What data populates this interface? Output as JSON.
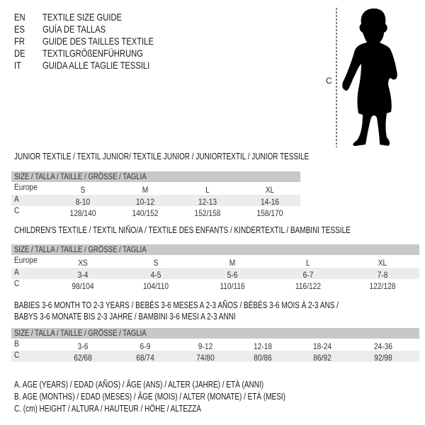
{
  "titles": [
    {
      "lang": "EN",
      "text": "TEXTILE SIZE GUIDE"
    },
    {
      "lang": "ES",
      "text": "GUÍA DE TALLAS"
    },
    {
      "lang": "FR",
      "text": "GUIDE DES TAILLES TEXTILE"
    },
    {
      "lang": "DE",
      "text": "TEXTILGRÖßENFÜHRUNG"
    },
    {
      "lang": "IT",
      "text": "GUIDA ALLE TAGLIE TESSILI"
    }
  ],
  "figure": {
    "measure_label": "C",
    "icon": "baby-silhouette"
  },
  "tables": [
    {
      "heading": [
        "JUNIOR TEXTILE / TEXTIL JUNIOR/ TEXTILE JUNIOR / JUNIORTEXTIL / JUNIOR TESSILE"
      ],
      "header": "SIZE / TALLA / TAILLE / GRÖSSE / TAGLIA",
      "rows": [
        {
          "label": "Europe",
          "values": [
            "S",
            "M",
            "L",
            "XL"
          ]
        },
        {
          "label": "A",
          "values": [
            "8-10",
            "10-12",
            "12-13",
            "14-16"
          ]
        },
        {
          "label": "C",
          "values": [
            "128/140",
            "140/152",
            "152/158",
            "158/170"
          ]
        }
      ]
    },
    {
      "heading": [
        "CHILDREN'S TEXTILE / TEXTIL NIÑO/A / TEXTILE DES ENFANTS / KINDERTEXTIL / BAMBINI TESSILE"
      ],
      "header": "SIZE / TALLA / TAILLE / GRÖSSE / TAGLIA",
      "rows": [
        {
          "label": "Europe",
          "values": [
            "XS",
            "S",
            "M",
            "L",
            "XL"
          ]
        },
        {
          "label": "A",
          "values": [
            "3-4",
            "4-5",
            "5-6",
            "6-7",
            "7-8"
          ]
        },
        {
          "label": "C",
          "values": [
            "98/104",
            "104/110",
            "110/116",
            "116/122",
            "122/128"
          ]
        }
      ]
    },
    {
      "heading": [
        "BABIES 3-6 MONTH TO 2-3 YEARS / BEBÉS 3-6 MESES A 2-3 AÑOS / BÉBÉS 3-6 MOIS À 2-3 ANS /",
        "BABYS 3-6 MONATE BIS 2-3 JAHRE / BAMBINI 3-6 MESI A 2-3 ANNI"
      ],
      "header": "SIZE / TALLA / TAILLE / GRÖSSE / TAGLIA",
      "rows": [
        {
          "label": "B",
          "values": [
            "3-6",
            "6-9",
            "9-12",
            "12-18",
            "18-24",
            "24-36"
          ]
        },
        {
          "label": "C",
          "values": [
            "62/68",
            "68/74",
            "74/80",
            "80/86",
            "86/92",
            "92/98"
          ]
        }
      ]
    }
  ],
  "legend": [
    "A. AGE (YEARS) / EDAD (AÑOS) / ÂGE (ANS) / ALTER (JAHRE) / ETÀ (ANNI)",
    "B. AGE (MONTHS) / EDAD (MESES) / ÂGE (MOIS) / ALTER (MONATE) / ETÀ (MESI)",
    "C. (cm) HEIGHT / ALTURA / HAUTEUR / HÖHE / ALTEZZA"
  ]
}
